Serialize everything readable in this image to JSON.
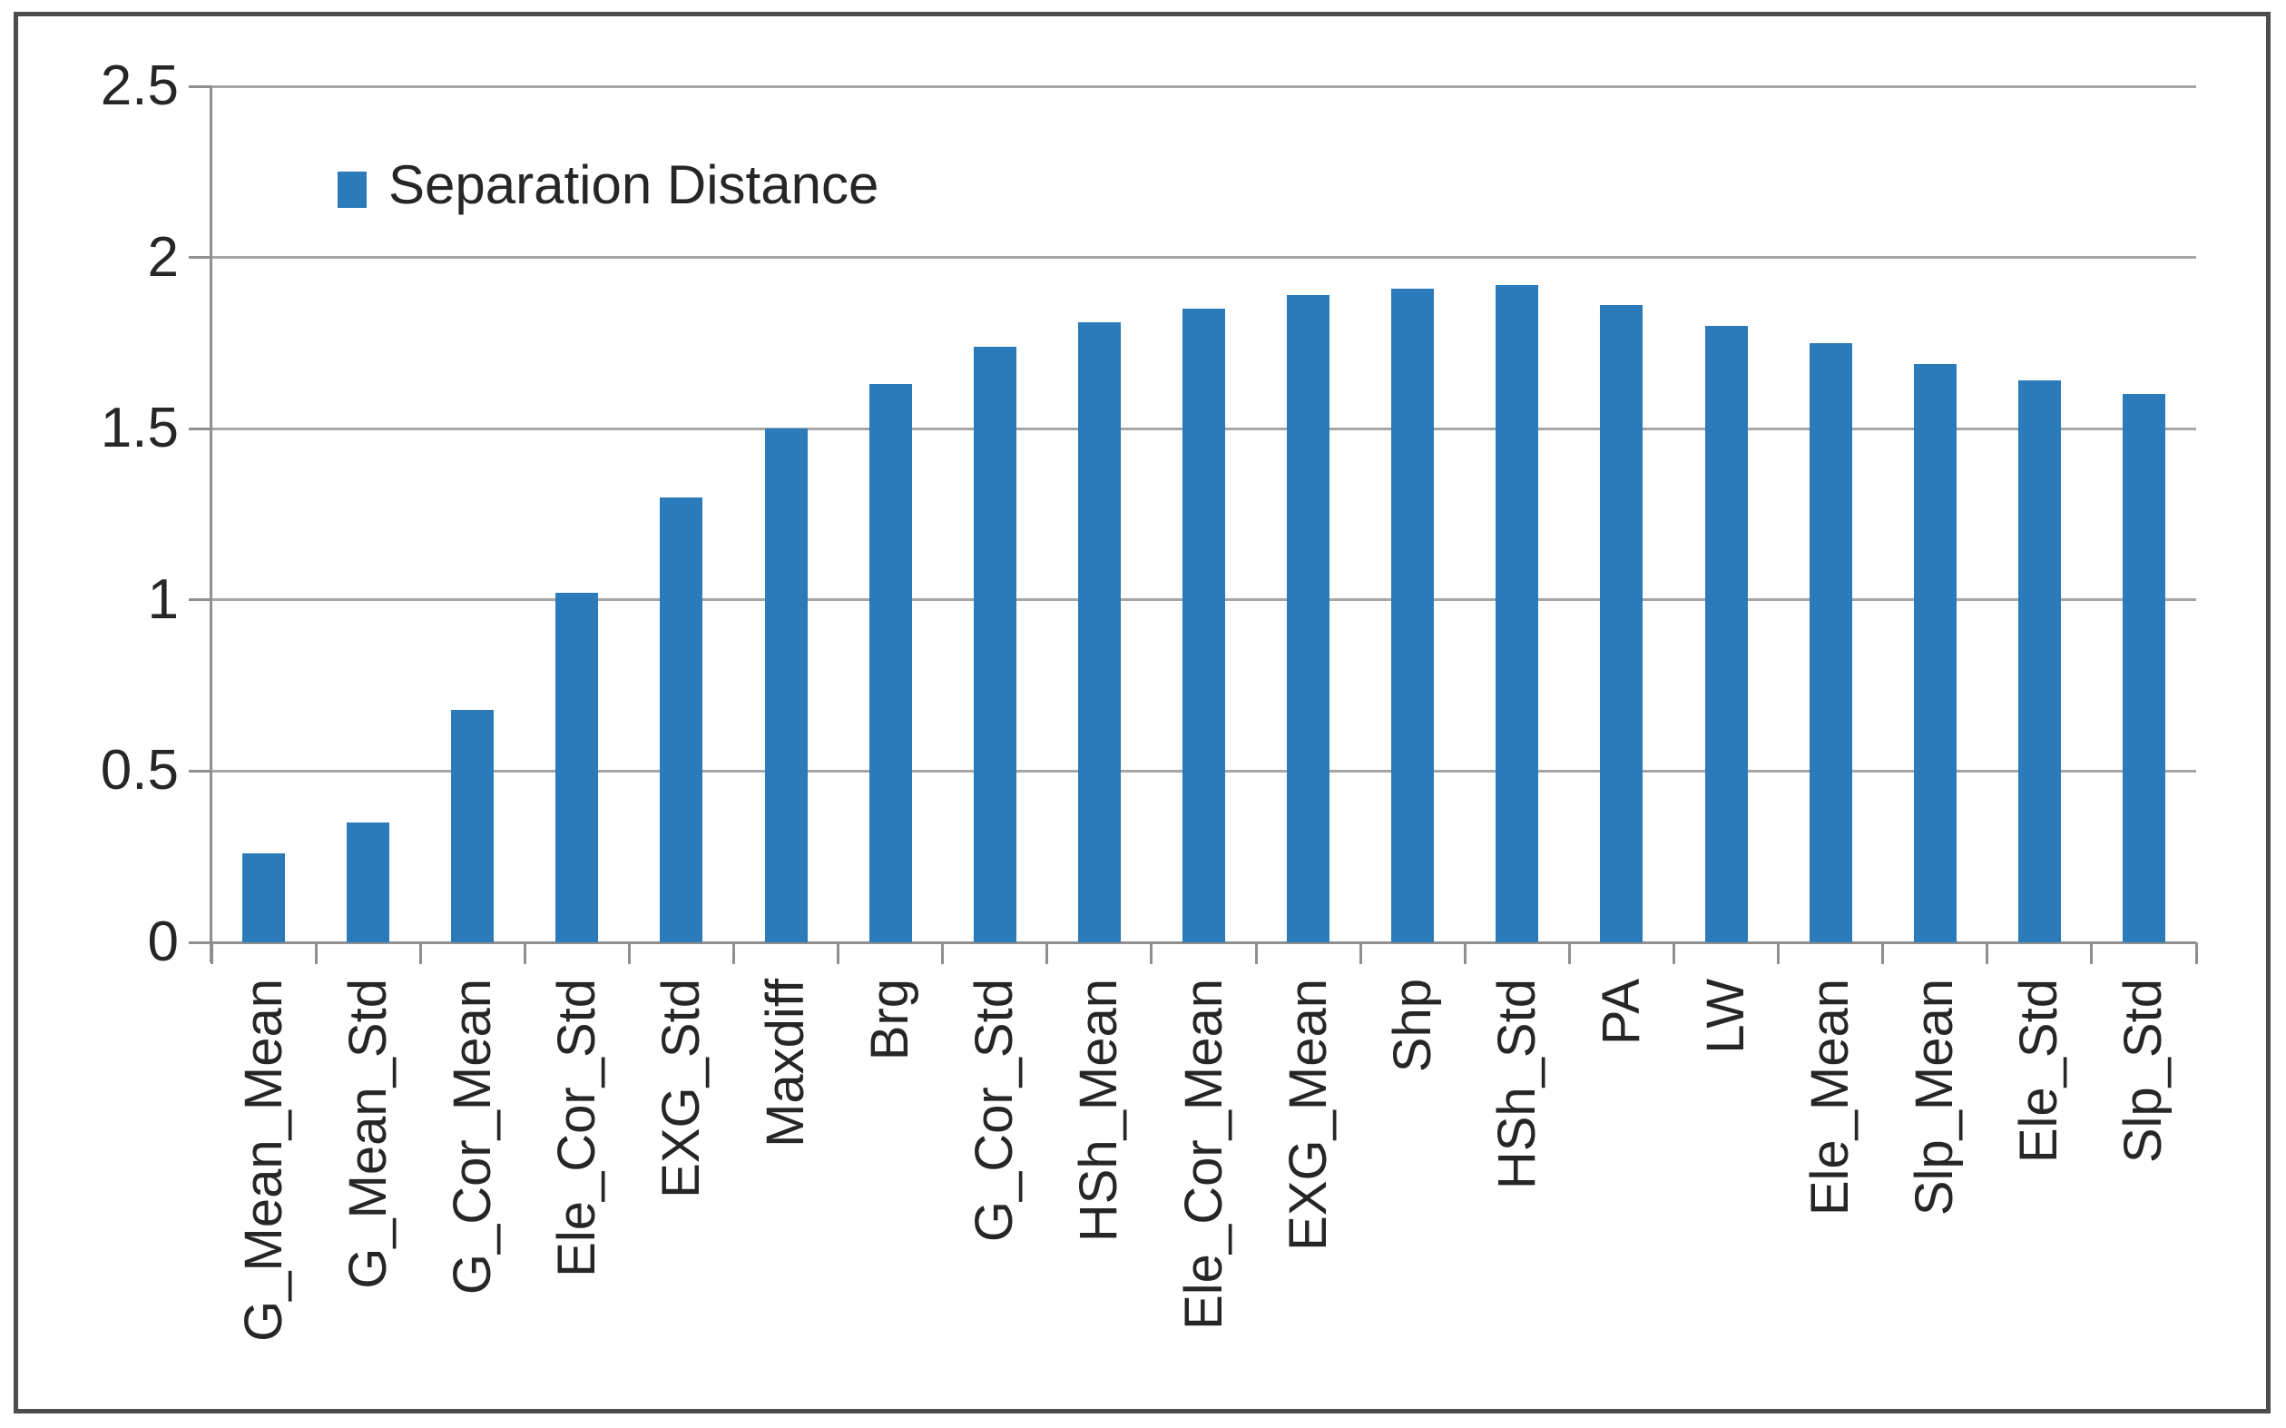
{
  "chart_data": {
    "type": "bar",
    "title": "",
    "xlabel": "",
    "ylabel": "",
    "series_name": "Separation Distance",
    "legend_position": "top-left-inside",
    "grid": true,
    "categories": [
      "G_Mean_Mean",
      "G_Mean_Std",
      "G_Cor_Mean",
      "Ele_Cor_Std",
      "EXG_Std",
      "Maxdiff",
      "Brg",
      "G_Cor_Std",
      "HSh_Mean",
      "Ele_Cor_Mean",
      "EXG_Mean",
      "Shp",
      "HSh_Std",
      "PA",
      "LW",
      "Ele_Mean",
      "Slp_Mean",
      "Ele_Std",
      "Slp_Std"
    ],
    "values": [
      0.26,
      0.35,
      0.68,
      1.02,
      1.3,
      1.5,
      1.63,
      1.74,
      1.81,
      1.85,
      1.89,
      1.91,
      1.92,
      1.86,
      1.8,
      1.75,
      1.69,
      1.64,
      1.6
    ],
    "ylim": [
      0,
      2.5
    ],
    "yticks": [
      0,
      0.5,
      1,
      1.5,
      2,
      2.5
    ],
    "ytick_labels": [
      "0",
      "0.5",
      "1",
      "1.5",
      "2",
      "2.5"
    ],
    "colors": {
      "bar": "#2b7ab9",
      "gridline": "#a6a6a6",
      "axis": "#8f8f8f",
      "text": "#262626",
      "frame_border": "#4d4d4d",
      "background": "#ffffff"
    }
  }
}
